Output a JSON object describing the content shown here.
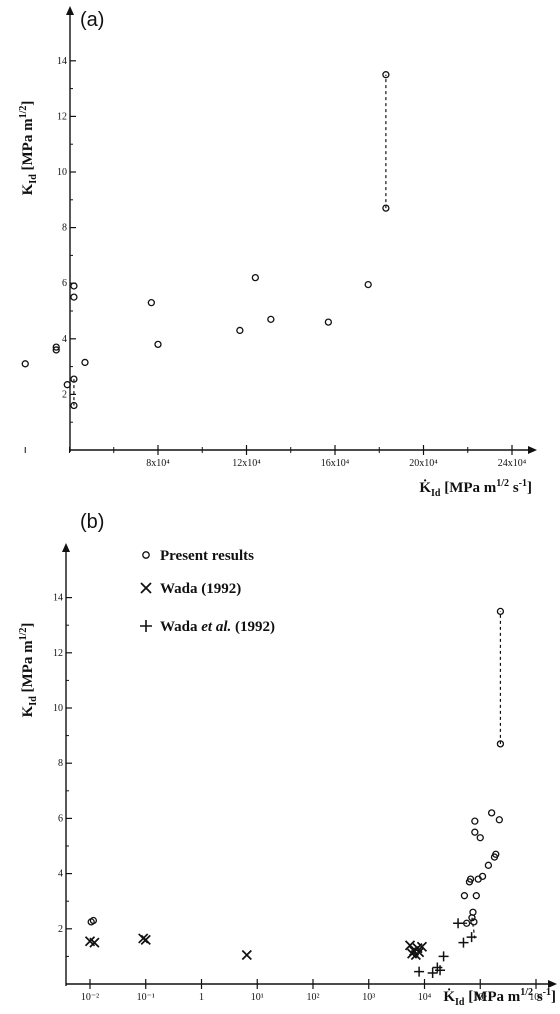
{
  "chart_data": [
    {
      "type": "scatter",
      "panel_label": "(a)",
      "ylabel": "K_Id [MPa m^1/2]",
      "xlabel": "K̇_Id [MPa m^1/2 s^-1]",
      "xlim": [
        0,
        260000
      ],
      "ylim": [
        0,
        15
      ],
      "x_ticks": [
        80000,
        120000,
        160000,
        200000,
        240000
      ],
      "x_tick_labels": [
        "8x10⁴",
        "12x10⁴",
        "16x10⁴",
        "20x10⁴",
        "24x10⁴"
      ],
      "y_ticks": [
        2,
        4,
        6,
        8,
        10,
        12,
        14
      ],
      "y_tick_labels": [
        "2",
        "4",
        "6",
        "8",
        "10",
        "12",
        "14"
      ],
      "grid": false,
      "series": [
        {
          "marker": "circle",
          "points": [
            [
              5000,
              2.2
            ],
            [
              20000,
              3.1
            ],
            [
              34000,
              3.6
            ],
            [
              34000,
              3.7
            ],
            [
              39000,
              2.35
            ],
            [
              42000,
              5.5
            ],
            [
              42000,
              5.9
            ],
            [
              42000,
              2.55
            ],
            [
              42000,
              1.6
            ],
            [
              47000,
              3.15
            ],
            [
              77000,
              5.3
            ],
            [
              80000,
              3.8
            ],
            [
              117000,
              4.3
            ],
            [
              124000,
              6.2
            ],
            [
              131000,
              4.7
            ],
            [
              157000,
              4.6
            ],
            [
              175000,
              5.95
            ],
            [
              183000,
              8.7
            ],
            [
              183000,
              13.5
            ]
          ]
        }
      ],
      "dashed_links": [
        [
          [
            42000,
            2.55
          ],
          [
            42000,
            1.6
          ]
        ],
        [
          [
            183000,
            8.7
          ],
          [
            183000,
            13.5
          ]
        ]
      ]
    },
    {
      "type": "scatter",
      "panel_label": "(b)",
      "ylabel": "K_Id [MPa m^1/2]",
      "xlabel": "K̇_Id [MPa m^1/2 s^-1]",
      "xscale": "log",
      "xlim": [
        0.003,
        2000000
      ],
      "ylim": [
        0,
        15
      ],
      "x_ticks": [
        0.01,
        0.1,
        1,
        10,
        100,
        1000,
        10000,
        100000,
        1000000
      ],
      "x_tick_labels": [
        "10⁻²",
        "10⁻¹",
        "1",
        "10¹",
        "10²",
        "10³",
        "10⁴",
        "10⁵",
        "10⁶"
      ],
      "y_ticks": [
        2,
        4,
        6,
        8,
        10,
        12,
        14
      ],
      "y_tick_labels": [
        "2",
        "4",
        "6",
        "8",
        "10",
        "12",
        "14"
      ],
      "grid": false,
      "legend": {
        "placement": "top-left",
        "entries": [
          {
            "marker": "circle",
            "label": "Present results"
          },
          {
            "marker": "x",
            "label": "Wada (1992)"
          },
          {
            "marker": "plus",
            "label_prefix": "Wada ",
            "label_italic": "et al.",
            "label_suffix": " (1992)"
          }
        ]
      },
      "series": [
        {
          "name": "Present results",
          "marker": "circle",
          "points": [
            [
              0.0105,
              2.25
            ],
            [
              0.0115,
              2.3
            ],
            [
              52000,
              3.2
            ],
            [
              57000,
              2.2
            ],
            [
              64000,
              3.7
            ],
            [
              67000,
              3.8
            ],
            [
              71000,
              2.4
            ],
            [
              74000,
              2.6
            ],
            [
              77000,
              2.25
            ],
            [
              80000,
              5.5
            ],
            [
              80000,
              5.9
            ],
            [
              85000,
              3.2
            ],
            [
              92000,
              3.8
            ],
            [
              100000,
              5.3
            ],
            [
              110000,
              3.9
            ],
            [
              140000,
              4.3
            ],
            [
              160000,
              6.2
            ],
            [
              180000,
              4.6
            ],
            [
              190000,
              4.7
            ],
            [
              220000,
              5.95
            ],
            [
              230000,
              8.7
            ],
            [
              230000,
              13.5
            ]
          ]
        },
        {
          "name": "Wada (1992)",
          "marker": "x",
          "points": [
            [
              0.01,
              1.55
            ],
            [
              0.012,
              1.5
            ],
            [
              0.09,
              1.65
            ],
            [
              0.1,
              1.6
            ],
            [
              6.5,
              1.05
            ],
            [
              5500,
              1.4
            ],
            [
              6000,
              1.1
            ],
            [
              6500,
              1.2
            ],
            [
              7000,
              1.05
            ],
            [
              7500,
              1.3
            ],
            [
              8000,
              1.15
            ],
            [
              9000,
              1.35
            ]
          ]
        },
        {
          "name": "Wada et al. (1992)",
          "marker": "plus",
          "points": [
            [
              8000,
              0.45
            ],
            [
              14000,
              0.4
            ],
            [
              17000,
              0.6
            ],
            [
              19000,
              0.5
            ],
            [
              22000,
              1.0
            ],
            [
              40000,
              2.2
            ],
            [
              50000,
              1.5
            ],
            [
              70000,
              1.7
            ]
          ]
        }
      ],
      "dashed_links": [
        [
          [
            230000,
            8.7
          ],
          [
            230000,
            13.5
          ]
        ],
        [
          [
            71000,
            2.4
          ],
          [
            80000,
            1.65
          ]
        ],
        [
          [
            40000,
            2.2
          ],
          [
            70000,
            2.2
          ]
        ]
      ]
    }
  ]
}
